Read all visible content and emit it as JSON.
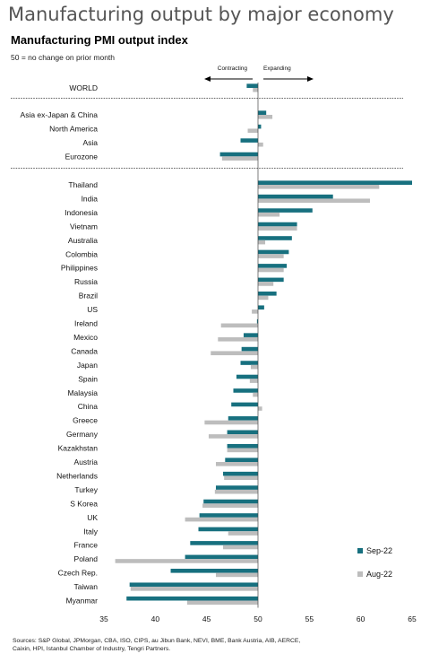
{
  "title": "Manufacturing output by major economy",
  "subtitle": "Manufacturing PMI output index",
  "note": "50 = no change on prior month",
  "direction_labels": {
    "left": "Contracting",
    "right": "Expanding"
  },
  "sources": "Sources: S&P Global, JPMorgan, CBA, ISO, CIPS, au Jibun Bank, NEVI, BME, Bank Austria, AIB, AERCE, Caixin, HPI, Istanbul Chamber of Industry, Tengri Partners.",
  "colors": {
    "sep": "#17707f",
    "aug": "#bdbdbd"
  },
  "chart_data": {
    "type": "bar",
    "orientation": "horizontal",
    "baseline": 50,
    "xlim": [
      35,
      65
    ],
    "xticks": [
      35,
      40,
      45,
      50,
      55,
      60,
      65
    ],
    "legend_position": "bottom-right",
    "series": [
      {
        "name": "Sep-22",
        "color": "#17707f"
      },
      {
        "name": "Aug-22",
        "color": "#bdbdbd"
      }
    ],
    "groups": [
      {
        "items": [
          {
            "label": "WORLD",
            "sep": 48.9,
            "aug": 49.5
          }
        ]
      },
      {
        "items": [
          {
            "label": "Asia ex-Japan & China",
            "sep": 50.8,
            "aug": 51.4
          },
          {
            "label": "North America",
            "sep": 50.3,
            "aug": 49.0
          },
          {
            "label": "Asia",
            "sep": 48.3,
            "aug": 50.5
          },
          {
            "label": "Eurozone",
            "sep": 46.3,
            "aug": 46.5
          }
        ]
      },
      {
        "items": [
          {
            "label": "Thailand",
            "sep": 65.0,
            "aug": 61.8
          },
          {
            "label": "India",
            "sep": 57.3,
            "aug": 60.9
          },
          {
            "label": "Indonesia",
            "sep": 55.3,
            "aug": 52.1
          },
          {
            "label": "Vietnam",
            "sep": 53.8,
            "aug": 53.8
          },
          {
            "label": "Australia",
            "sep": 53.3,
            "aug": 50.7
          },
          {
            "label": "Colombia",
            "sep": 53.0,
            "aug": 52.5
          },
          {
            "label": "Philippines",
            "sep": 52.8,
            "aug": 52.5
          },
          {
            "label": "Russia",
            "sep": 52.5,
            "aug": 51.5
          },
          {
            "label": "Brazil",
            "sep": 51.8,
            "aug": 51.0
          },
          {
            "label": "US",
            "sep": 50.6,
            "aug": 49.4
          },
          {
            "label": "Ireland",
            "sep": 49.9,
            "aug": 46.4
          },
          {
            "label": "Mexico",
            "sep": 48.6,
            "aug": 46.1
          },
          {
            "label": "Canada",
            "sep": 48.4,
            "aug": 45.4
          },
          {
            "label": "Japan",
            "sep": 48.3,
            "aug": 49.3
          },
          {
            "label": "Spain",
            "sep": 47.9,
            "aug": 49.2
          },
          {
            "label": "Malaysia",
            "sep": 47.6,
            "aug": 49.5
          },
          {
            "label": "China",
            "sep": 47.4,
            "aug": 50.4
          },
          {
            "label": "Greece",
            "sep": 47.1,
            "aug": 44.8
          },
          {
            "label": "Germany",
            "sep": 47.0,
            "aug": 45.2
          },
          {
            "label": "Kazakhstan",
            "sep": 47.0,
            "aug": 47.0
          },
          {
            "label": "Austria",
            "sep": 46.8,
            "aug": 45.9
          },
          {
            "label": "Netherlands",
            "sep": 46.6,
            "aug": 46.7
          },
          {
            "label": "Turkey",
            "sep": 45.9,
            "aug": 45.8
          },
          {
            "label": "S Korea",
            "sep": 44.7,
            "aug": 44.6
          },
          {
            "label": "UK",
            "sep": 44.3,
            "aug": 42.9
          },
          {
            "label": "Italy",
            "sep": 44.2,
            "aug": 47.1
          },
          {
            "label": "France",
            "sep": 43.4,
            "aug": 46.6
          },
          {
            "label": "Poland",
            "sep": 42.9,
            "aug": 36.1
          },
          {
            "label": "Czech Rep.",
            "sep": 41.5,
            "aug": 45.9
          },
          {
            "label": "Taiwan",
            "sep": 37.5,
            "aug": 37.6
          },
          {
            "label": "Myanmar",
            "sep": 37.2,
            "aug": 43.1
          }
        ]
      }
    ]
  }
}
